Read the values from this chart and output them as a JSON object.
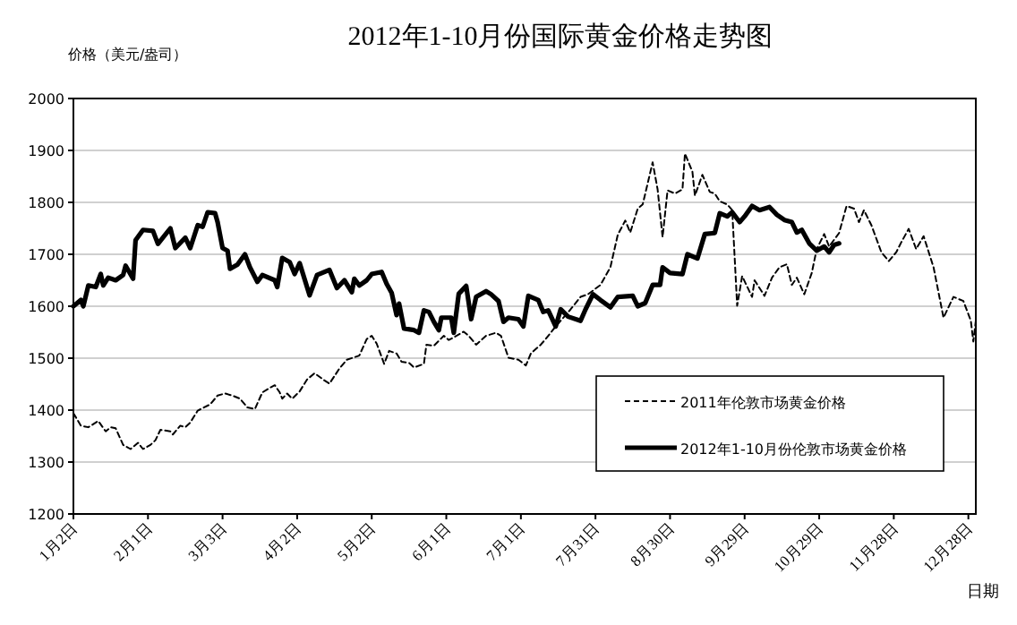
{
  "chart_data": {
    "type": "line",
    "title": "2012年1-10月份国际黄金价格走势图",
    "ylabel": "价格（美元/盎司）",
    "xlabel": "日期",
    "xlim": [
      "--01-02",
      "--12-31"
    ],
    "xticks": [
      {
        "value": "--01-02",
        "label": "1月2日"
      },
      {
        "value": "--02-01",
        "label": "2月1日"
      },
      {
        "value": "--03-03",
        "label": "3月3日"
      },
      {
        "value": "--04-02",
        "label": "4月2日"
      },
      {
        "value": "--05-02",
        "label": "5月2日"
      },
      {
        "value": "--06-01",
        "label": "6月1日"
      },
      {
        "value": "--07-01",
        "label": "7月1日"
      },
      {
        "value": "--07-31",
        "label": "7月31日"
      },
      {
        "value": "--08-30",
        "label": "8月30日"
      },
      {
        "value": "--09-29",
        "label": "9月29日"
      },
      {
        "value": "--10-29",
        "label": "10月29日"
      },
      {
        "value": "--11-28",
        "label": "11月28日"
      },
      {
        "value": "--12-28",
        "label": "12月28日"
      }
    ],
    "ylim": [
      1200,
      2000
    ],
    "yticks": [
      1200,
      1300,
      1400,
      1500,
      1600,
      1700,
      1800,
      1900,
      2000
    ],
    "grid": "y",
    "legend": "bottom right",
    "marker": "none",
    "series": [
      {
        "name": "2011年伦敦市场黄金价格",
        "color": "#000000",
        "line_style": "dashed",
        "x": [
          "--01-02",
          "--01-05",
          "--01-08",
          "--01-12",
          "--01-15",
          "--01-17",
          "--01-19",
          "--01-22",
          "--01-25",
          "--01-28",
          "--01-30",
          "--02-02",
          "--02-04",
          "--02-06",
          "--02-10",
          "--02-11",
          "--02-14",
          "--02-16",
          "--02-18",
          "--02-21",
          "--02-26",
          "--03-01",
          "--03-04",
          "--03-07",
          "--03-10",
          "--03-13",
          "--03-16",
          "--03-19",
          "--03-22",
          "--03-24",
          "--03-26",
          "--03-27",
          "--03-29",
          "--03-31",
          "--04-03",
          "--04-06",
          "--04-09",
          "--04-13",
          "--04-15",
          "--04-19",
          "--04-22",
          "--04-27",
          "--04-30",
          "--05-02",
          "--05-04",
          "--05-07",
          "--05-09",
          "--05-12",
          "--05-14",
          "--05-17",
          "--05-19",
          "--05-23",
          "--05-24",
          "--05-27",
          "--05-31",
          "--06-02",
          "--06-04",
          "--06-08",
          "--06-10",
          "--06-13",
          "--06-17",
          "--06-21",
          "--06-23",
          "--06-26",
          "--06-30",
          "--07-03",
          "--07-05",
          "--07-09",
          "--07-11",
          "--07-15",
          "--07-19",
          "--07-21",
          "--07-25",
          "--07-28",
          "--08-02",
          "--08-06",
          "--08-09",
          "--08-12",
          "--08-14",
          "--08-17",
          "--08-19",
          "--08-23",
          "--08-25",
          "--08-27",
          "--08-29",
          "--09-01",
          "--09-04",
          "--09-05",
          "--09-08",
          "--09-09",
          "--09-12",
          "--09-15",
          "--09-17",
          "--09-19",
          "--09-22",
          "--09-24",
          "--09-26",
          "--09-28",
          "--10-02",
          "--10-03",
          "--10-07",
          "--10-10",
          "--10-13",
          "--10-16",
          "--10-18",
          "--10-20",
          "--10-23",
          "--10-26",
          "--10-28",
          "--10-31",
          "--11-02",
          "--11-06",
          "--11-09",
          "--11-12",
          "--11-14",
          "--11-16",
          "--11-19",
          "--11-23",
          "--11-26",
          "--11-29",
          "--12-01",
          "--12-04",
          "--12-07",
          "--12-10",
          "--12-14",
          "--12-18",
          "--12-22",
          "--12-26",
          "--12-29",
          "--12-30",
          "--12-31"
        ],
        "values": [
          1394,
          1370,
          1367,
          1379,
          1359,
          1367,
          1365,
          1333,
          1325,
          1337,
          1325,
          1333,
          1342,
          1362,
          1359,
          1353,
          1370,
          1367,
          1376,
          1399,
          1411,
          1428,
          1432,
          1428,
          1422,
          1405,
          1402,
          1434,
          1443,
          1448,
          1434,
          1422,
          1432,
          1422,
          1436,
          1459,
          1471,
          1457,
          1451,
          1480,
          1497,
          1505,
          1537,
          1543,
          1528,
          1489,
          1514,
          1509,
          1493,
          1491,
          1482,
          1489,
          1526,
          1524,
          1543,
          1535,
          1540,
          1551,
          1543,
          1526,
          1543,
          1549,
          1543,
          1501,
          1497,
          1486,
          1509,
          1526,
          1537,
          1561,
          1583,
          1594,
          1618,
          1623,
          1641,
          1675,
          1738,
          1765,
          1742,
          1788,
          1796,
          1877,
          1825,
          1733,
          1823,
          1817,
          1825,
          1894,
          1859,
          1813,
          1853,
          1820,
          1817,
          1802,
          1796,
          1785,
          1601,
          1658,
          1618,
          1650,
          1620,
          1655,
          1675,
          1681,
          1641,
          1655,
          1623,
          1664,
          1710,
          1739,
          1715,
          1741,
          1793,
          1788,
          1762,
          1785,
          1756,
          1704,
          1687,
          1704,
          1723,
          1749,
          1710,
          1735,
          1675,
          1578,
          1618,
          1610,
          1572,
          1532,
          1572
        ]
      },
      {
        "name": "2012年1-10月份伦敦市场黄金价格",
        "color": "#000000",
        "line_style": "solid",
        "x": [
          "--01-02",
          "--01-05",
          "--01-06",
          "--01-08",
          "--01-11",
          "--01-13",
          "--01-14",
          "--01-16",
          "--01-19",
          "--01-22",
          "--01-23",
          "--01-26",
          "--01-27",
          "--01-30",
          "--02-03",
          "--02-05",
          "--02-10",
          "--02-12",
          "--02-16",
          "--02-18",
          "--02-21",
          "--02-23",
          "--02-25",
          "--02-28",
          "--03-01",
          "--03-03",
          "--03-05",
          "--03-06",
          "--03-09",
          "--03-12",
          "--03-14",
          "--03-17",
          "--03-19",
          "--03-24",
          "--03-25",
          "--03-27",
          "--03-30",
          "--04-01",
          "--04-03",
          "--04-07",
          "--04-10",
          "--04-15",
          "--04-18",
          "--04-21",
          "--04-24",
          "--04-25",
          "--04-27",
          "--04-30",
          "--05-02",
          "--05-06",
          "--05-08",
          "--05-10",
          "--05-12",
          "--05-13",
          "--05-15",
          "--05-19",
          "--05-21",
          "--05-23",
          "--05-25",
          "--05-27",
          "--05-29",
          "--05-30",
          "--06-03",
          "--06-04",
          "--06-06",
          "--06-09",
          "--06-11",
          "--06-13",
          "--06-17",
          "--06-19",
          "--06-22",
          "--06-24",
          "--06-26",
          "--06-30",
          "--07-02",
          "--07-04",
          "--07-08",
          "--07-10",
          "--07-12",
          "--07-15",
          "--07-17",
          "--07-20",
          "--07-25",
          "--07-27",
          "--07-30",
          "--08-02",
          "--08-06",
          "--08-09",
          "--08-15",
          "--08-17",
          "--08-20",
          "--08-23",
          "--08-26",
          "--08-27",
          "--08-30",
          "--09-04",
          "--09-06",
          "--09-10",
          "--09-13",
          "--09-17",
          "--09-19",
          "--09-22",
          "--09-24",
          "--09-27",
          "--09-29",
          "--10-02",
          "--10-05",
          "--10-09",
          "--10-12",
          "--10-15",
          "--10-18",
          "--10-20",
          "--10-22",
          "--10-25",
          "--10-28",
          "--10-31",
          "--11-02",
          "--11-04",
          "--11-06"
        ],
        "values": [
          1600,
          1612,
          1600,
          1640,
          1637,
          1662,
          1640,
          1655,
          1650,
          1660,
          1678,
          1653,
          1727,
          1747,
          1745,
          1720,
          1750,
          1712,
          1732,
          1712,
          1756,
          1753,
          1781,
          1779,
          1762,
          1712,
          1707,
          1672,
          1680,
          1700,
          1675,
          1647,
          1660,
          1650,
          1637,
          1693,
          1685,
          1662,
          1683,
          1621,
          1660,
          1670,
          1635,
          1650,
          1627,
          1653,
          1640,
          1650,
          1662,
          1666,
          1643,
          1626,
          1583,
          1605,
          1557,
          1554,
          1549,
          1592,
          1589,
          1570,
          1554,
          1578,
          1578,
          1549,
          1624,
          1639,
          1575,
          1618,
          1629,
          1623,
          1610,
          1570,
          1578,
          1575,
          1561,
          1620,
          1612,
          1589,
          1592,
          1561,
          1594,
          1580,
          1572,
          1594,
          1623,
          1612,
          1598,
          1618,
          1620,
          1600,
          1606,
          1641,
          1641,
          1675,
          1664,
          1662,
          1700,
          1692,
          1739,
          1741,
          1779,
          1773,
          1781,
          1762,
          1773,
          1793,
          1785,
          1791,
          1776,
          1766,
          1762,
          1742,
          1747,
          1721,
          1707,
          1715,
          1704,
          1718,
          1721
        ]
      }
    ]
  }
}
